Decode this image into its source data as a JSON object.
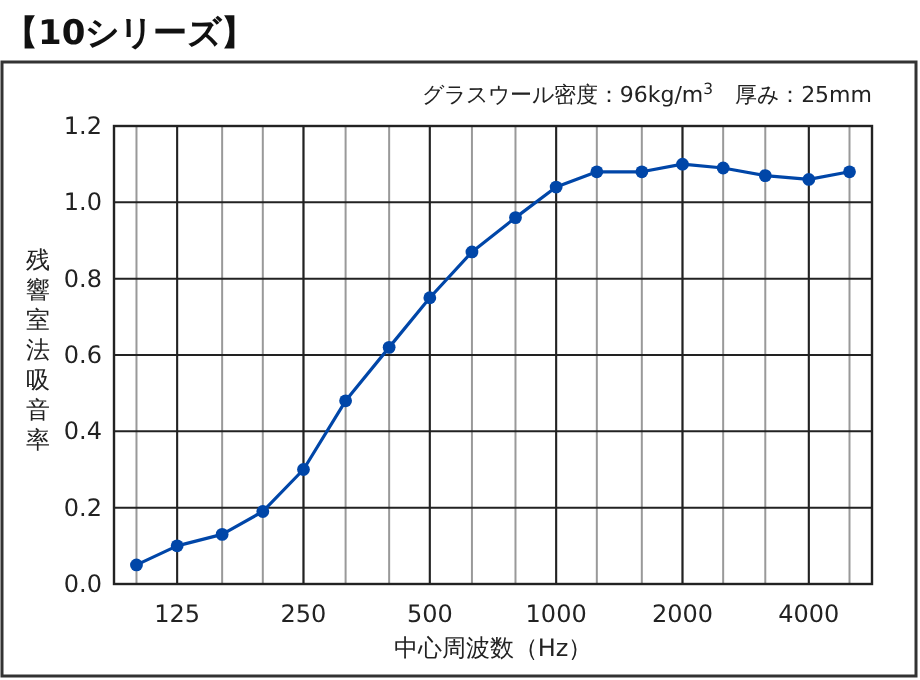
{
  "chart_data": {
    "type": "line",
    "title": "【10シリーズ】",
    "annotations": [
      "グラスウール密度：96kg/m$^{3}$　厚み：25mm"
    ],
    "xlabel": "中心周波数（Hz）",
    "ylabel": "残響室法吸音率",
    "log": "x",
    "x": [
      100,
      125,
      160,
      200,
      250,
      315,
      400,
      500,
      630,
      800,
      1000,
      1250,
      1600,
      2000,
      2500,
      3150,
      4000,
      5000
    ],
    "series": [
      {
        "color": "#0046a8",
        "values": [
          0.05,
          0.1,
          0.13,
          0.19,
          0.3,
          0.48,
          0.62,
          0.75,
          0.87,
          0.96,
          1.04,
          1.08,
          1.08,
          1.1,
          1.09,
          1.07,
          1.06,
          1.08
        ]
      }
    ],
    "xlim": [
      88.4,
      5657
    ],
    "xticks": [
      125,
      250,
      500,
      1000,
      2000,
      4000
    ],
    "ylim": [
      0,
      1.2
    ],
    "yticks": [
      {
        "value": 0,
        "label": "0.0"
      },
      {
        "value": 0.2,
        "label": "0.2"
      },
      {
        "value": 0.4,
        "label": "0.4"
      },
      {
        "value": 0.6,
        "label": "0.6"
      },
      {
        "value": 0.8,
        "label": "0.8"
      },
      {
        "value": 1.0,
        "label": "1.0"
      },
      {
        "value": 1.2,
        "label": "1.2"
      }
    ],
    "grid": true,
    "marker": "circle",
    "line_style": "solid"
  }
}
